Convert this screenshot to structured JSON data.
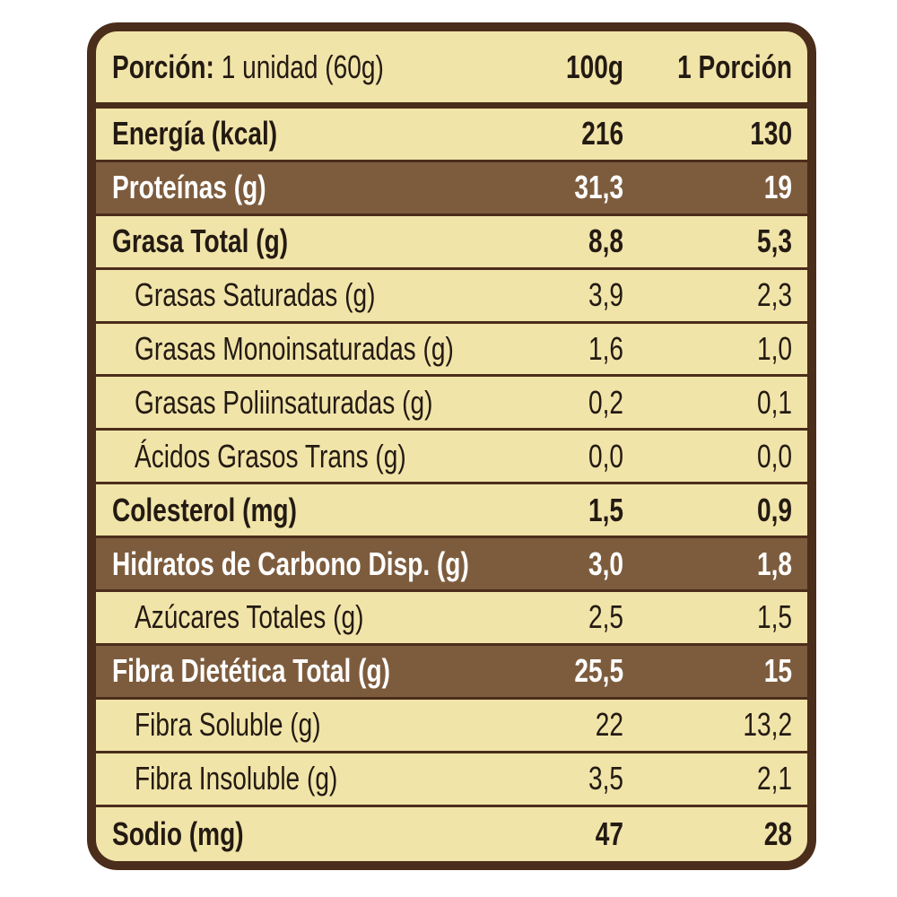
{
  "header": {
    "label": "Porción:",
    "serving": "1 unidad (60g)",
    "col1": "100g",
    "col2": "1 Porción"
  },
  "table": {
    "rows": [
      [
        "Energía (kcal)",
        "216",
        "130"
      ],
      [
        "Proteínas (g)",
        "31,3",
        "19"
      ],
      [
        "Grasa Total (g)",
        "8,8",
        "5,3"
      ],
      [
        "Grasas Saturadas (g)",
        "3,9",
        "2,3"
      ],
      [
        "Grasas Monoinsaturadas (g)",
        "1,6",
        "1,0"
      ],
      [
        "Grasas Poliinsaturadas (g)",
        "0,2",
        "0,1"
      ],
      [
        "Ácidos Grasos Trans (g)",
        "0,0",
        "0,0"
      ],
      [
        "Colesterol (mg)",
        "1,5",
        "0,9"
      ],
      [
        "Hidratos de Carbono Disp. (g)",
        "3,0",
        "1,8"
      ],
      [
        "Azúcares Totales (g)",
        "2,5",
        "1,5"
      ],
      [
        "Fibra Dietética Total (g)",
        "25,5",
        "15"
      ],
      [
        "Fibra Soluble (g)",
        "22",
        "13,2"
      ],
      [
        "Fibra Insoluble (g)",
        "3,5",
        "2,1"
      ],
      [
        "Sodio (mg)",
        "47",
        "28"
      ]
    ]
  }
}
